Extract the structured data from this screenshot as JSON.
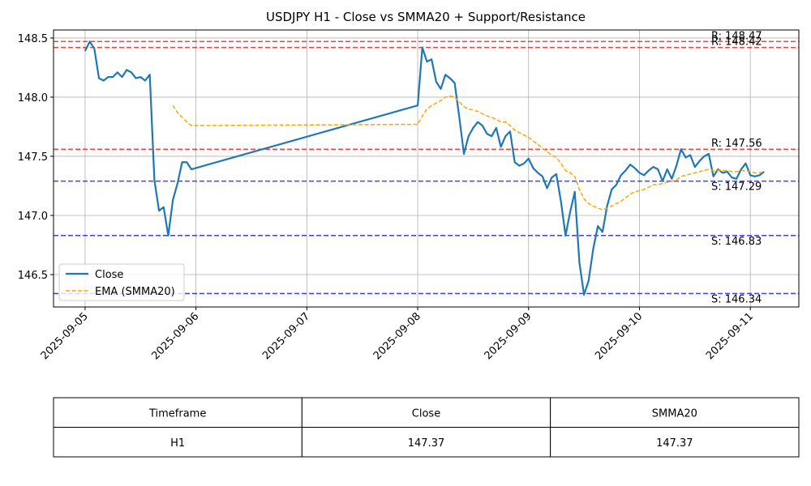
{
  "chart_data": {
    "type": "line",
    "title": "USDJPY H1 - Close vs SMMA20 + Support/Resistance",
    "x": [
      "2025-09-05 00:00",
      "2025-09-05 01:00",
      "2025-09-05 02:00",
      "2025-09-05 03:00",
      "2025-09-05 04:00",
      "2025-09-05 05:00",
      "2025-09-05 06:00",
      "2025-09-05 07:00",
      "2025-09-05 08:00",
      "2025-09-05 09:00",
      "2025-09-05 10:00",
      "2025-09-05 11:00",
      "2025-09-05 12:00",
      "2025-09-05 13:00",
      "2025-09-05 14:00",
      "2025-09-05 15:00",
      "2025-09-05 16:00",
      "2025-09-05 17:00",
      "2025-09-05 18:00",
      "2025-09-05 19:00",
      "2025-09-05 20:00",
      "2025-09-05 21:00",
      "2025-09-05 22:00",
      "2025-09-05 23:00",
      "2025-09-08 00:00",
      "2025-09-08 01:00",
      "2025-09-08 02:00",
      "2025-09-08 03:00",
      "2025-09-08 04:00",
      "2025-09-08 05:00",
      "2025-09-08 06:00",
      "2025-09-08 07:00",
      "2025-09-08 08:00",
      "2025-09-08 09:00",
      "2025-09-08 10:00",
      "2025-09-08 11:00",
      "2025-09-08 12:00",
      "2025-09-08 13:00",
      "2025-09-08 14:00",
      "2025-09-08 15:00",
      "2025-09-08 16:00",
      "2025-09-08 17:00",
      "2025-09-08 18:00",
      "2025-09-08 19:00",
      "2025-09-08 20:00",
      "2025-09-08 21:00",
      "2025-09-08 22:00",
      "2025-09-08 23:00",
      "2025-09-09 00:00",
      "2025-09-09 01:00",
      "2025-09-09 02:00",
      "2025-09-09 03:00",
      "2025-09-09 04:00",
      "2025-09-09 05:00",
      "2025-09-09 06:00",
      "2025-09-09 07:00",
      "2025-09-09 08:00",
      "2025-09-09 09:00",
      "2025-09-09 10:00",
      "2025-09-09 11:00",
      "2025-09-09 12:00",
      "2025-09-09 13:00",
      "2025-09-09 14:00",
      "2025-09-09 15:00",
      "2025-09-09 16:00",
      "2025-09-09 17:00",
      "2025-09-09 18:00",
      "2025-09-09 19:00",
      "2025-09-09 20:00",
      "2025-09-09 21:00",
      "2025-09-09 22:00",
      "2025-09-09 23:00",
      "2025-09-10 00:00",
      "2025-09-10 01:00",
      "2025-09-10 02:00",
      "2025-09-10 03:00",
      "2025-09-10 04:00",
      "2025-09-10 05:00",
      "2025-09-10 06:00",
      "2025-09-10 07:00",
      "2025-09-10 08:00",
      "2025-09-10 09:00",
      "2025-09-10 10:00",
      "2025-09-10 11:00",
      "2025-09-10 12:00",
      "2025-09-10 13:00",
      "2025-09-10 14:00",
      "2025-09-10 15:00",
      "2025-09-10 16:00",
      "2025-09-10 17:00",
      "2025-09-10 18:00",
      "2025-09-10 19:00",
      "2025-09-10 20:00",
      "2025-09-10 21:00",
      "2025-09-10 22:00",
      "2025-09-10 23:00",
      "2025-09-11 00:00",
      "2025-09-11 01:00",
      "2025-09-11 02:00",
      "2025-09-11 03:00"
    ],
    "series": [
      {
        "name": "Close",
        "color": "#1f77b4",
        "dashed": false,
        "values": [
          148.39,
          148.47,
          148.41,
          148.16,
          148.14,
          148.17,
          148.17,
          148.21,
          148.17,
          148.23,
          148.21,
          148.16,
          148.17,
          148.14,
          148.19,
          147.3,
          147.04,
          147.07,
          146.83,
          147.13,
          147.27,
          147.45,
          147.45,
          147.39,
          147.93,
          148.42,
          148.3,
          148.32,
          148.13,
          148.07,
          148.19,
          148.16,
          148.12,
          147.83,
          147.52,
          147.67,
          147.74,
          147.79,
          147.76,
          147.69,
          147.67,
          147.74,
          147.58,
          147.67,
          147.71,
          147.45,
          147.42,
          147.44,
          147.48,
          147.4,
          147.36,
          147.33,
          147.23,
          147.32,
          147.35,
          147.12,
          146.83,
          147.03,
          147.2,
          146.6,
          146.33,
          146.45,
          146.72,
          146.91,
          146.86,
          147.08,
          147.22,
          147.26,
          147.34,
          147.38,
          147.43,
          147.4,
          147.36,
          147.34,
          147.38,
          147.41,
          147.39,
          147.29,
          147.39,
          147.31,
          147.42,
          147.56,
          147.49,
          147.51,
          147.41,
          147.46,
          147.5,
          147.52,
          147.33,
          147.39,
          147.36,
          147.37,
          147.32,
          147.31,
          147.39,
          147.44,
          147.34,
          147.33,
          147.34,
          147.37
        ]
      },
      {
        "name": "EMA (SMMA20)",
        "color": "orange",
        "dashed": true,
        "values": [
          null,
          null,
          null,
          null,
          null,
          null,
          null,
          null,
          null,
          null,
          null,
          null,
          null,
          null,
          null,
          null,
          null,
          null,
          null,
          147.93,
          147.87,
          147.83,
          147.79,
          147.76,
          147.77,
          147.84,
          147.9,
          147.93,
          147.95,
          147.97,
          148.0,
          148.01,
          148.0,
          147.96,
          147.92,
          147.9,
          147.89,
          147.88,
          147.86,
          147.84,
          147.83,
          147.81,
          147.79,
          147.79,
          147.76,
          147.72,
          147.7,
          147.68,
          147.66,
          147.63,
          147.6,
          147.57,
          147.54,
          147.51,
          147.49,
          147.44,
          147.38,
          147.36,
          147.33,
          147.22,
          147.14,
          147.1,
          147.08,
          147.06,
          147.05,
          147.06,
          147.08,
          147.1,
          147.12,
          147.15,
          147.18,
          147.2,
          147.21,
          147.22,
          147.24,
          147.26,
          147.26,
          147.27,
          147.28,
          147.29,
          147.3,
          147.33,
          147.34,
          147.35,
          147.36,
          147.37,
          147.38,
          147.39,
          147.38,
          147.38,
          147.38,
          147.38,
          147.37,
          147.37,
          147.38,
          147.38,
          147.37,
          147.36,
          147.36,
          147.37
        ]
      }
    ],
    "resistance": [
      {
        "value": 148.47,
        "label": "R: 148.47",
        "color": "#ff0000"
      },
      {
        "value": 148.42,
        "label": "R: 148.42",
        "color": "#ff0000"
      },
      {
        "value": 147.56,
        "label": "R: 147.56",
        "color": "#ff0000"
      }
    ],
    "support": [
      {
        "value": 147.29,
        "label": "S: 147.29",
        "color": "#0000ff"
      },
      {
        "value": 146.83,
        "label": "S: 146.83",
        "color": "#0000ff"
      },
      {
        "value": 146.34,
        "label": "S: 146.34",
        "color": "#0000ff"
      }
    ],
    "xlim": [
      "2025-09-04 17:10",
      "2025-09-11 10:30"
    ],
    "xticks": [
      "2025-09-05",
      "2025-09-06",
      "2025-09-07",
      "2025-09-08",
      "2025-09-09",
      "2025-09-10",
      "2025-09-11"
    ],
    "ylim": [
      146.226,
      148.568
    ],
    "yticks": [
      146.5,
      {
        "value": 147,
        "label": "147.0"
      },
      147.5,
      {
        "value": 148,
        "label": "148.0"
      },
      148.5
    ],
    "grid": true,
    "legend": "lower left"
  },
  "table": {
    "header": [
      "Timeframe",
      "Close",
      "SMMA20"
    ],
    "rows": [
      [
        "H1",
        147.37,
        147.37
      ]
    ]
  }
}
